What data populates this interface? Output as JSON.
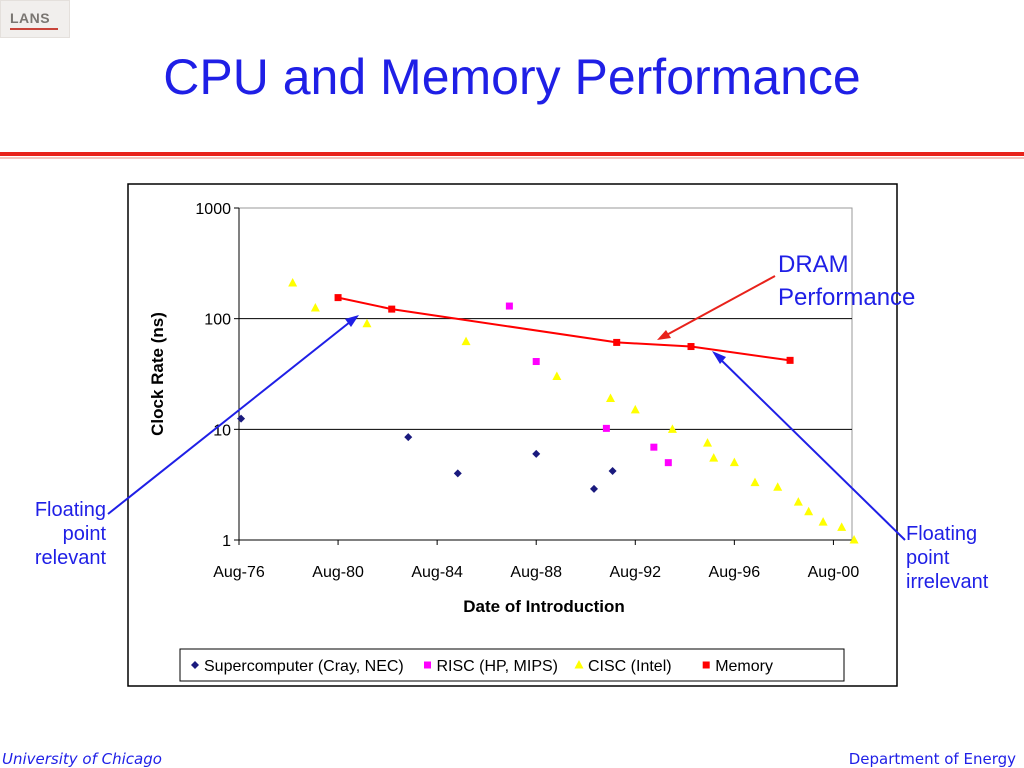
{
  "logo": {
    "text": "LANS"
  },
  "slide": {
    "title": "CPU and Memory Performance"
  },
  "annotations": {
    "left": [
      "Floating",
      "point",
      "relevant"
    ],
    "right": [
      "Floating",
      "point",
      "irrelevant"
    ],
    "dram": [
      "DRAM",
      "Performance"
    ]
  },
  "footer": {
    "left": "University of Chicago",
    "right": "Department of Energy"
  },
  "chart_data": {
    "type": "scatter",
    "title": "",
    "xlabel": "Date of Introduction",
    "ylabel": "Clock Rate (ns)",
    "y_scale": "log",
    "ylim": [
      1,
      1000
    ],
    "xlim": [
      "1976-08",
      "2001-05"
    ],
    "x_ticks": [
      "Aug-76",
      "Aug-80",
      "Aug-84",
      "Aug-88",
      "Aug-92",
      "Aug-96",
      "Aug-00"
    ],
    "y_ticks": [
      "1",
      "10",
      "100",
      "1000"
    ],
    "grid": "horizontal major",
    "legend_position": "bottom",
    "series": [
      {
        "name": "Supercomputer (Cray, NEC)",
        "marker": "diamond",
        "color": "#1a1a7e",
        "points": [
          [
            "1976-09",
            12.5
          ],
          [
            "1983-06",
            8.5
          ],
          [
            "1985-06",
            4
          ],
          [
            "1988-08",
            6
          ],
          [
            "1991-00",
            2.9
          ],
          [
            "1991-09",
            4.2
          ]
        ]
      },
      {
        "name": "RISC (HP, MIPS)",
        "marker": "square",
        "color": "#ff00ff",
        "points": [
          [
            "1987-07",
            130
          ],
          [
            "1988-08",
            41
          ],
          [
            "1991-06",
            10.2
          ],
          [
            "1993-05",
            6.9
          ],
          [
            "1994-00",
            5
          ]
        ]
      },
      {
        "name": "CISC (Intel)",
        "marker": "triangle",
        "color": "#ffff00",
        "points": [
          [
            "1978-10",
            210
          ],
          [
            "1979-09",
            125
          ],
          [
            "1981-10",
            90
          ],
          [
            "1985-10",
            62
          ],
          [
            "1989-06",
            30
          ],
          [
            "1991-08",
            19
          ],
          [
            "1992-08",
            15
          ],
          [
            "1994-02",
            10
          ],
          [
            "1995-07",
            7.5
          ],
          [
            "1995-10",
            5.5
          ],
          [
            "1996-08",
            5
          ],
          [
            "1997-06",
            3.3
          ],
          [
            "1998-05",
            3
          ],
          [
            "1999-03",
            2.2
          ],
          [
            "1999-08",
            1.8
          ],
          [
            "2000-03",
            1.45
          ],
          [
            "2001-00",
            1.3
          ],
          [
            "2001-06",
            1
          ]
        ]
      },
      {
        "name": "Memory",
        "marker": "square",
        "color": "#ff0000",
        "line": true,
        "points": [
          [
            "1980-08",
            155
          ],
          [
            "1982-10",
            122
          ],
          [
            "1991-11",
            61
          ],
          [
            "1994-11",
            56
          ],
          [
            "1998-11",
            42
          ]
        ]
      }
    ]
  },
  "colors": {
    "title": "#1f1fe6",
    "rule": "#e8221b",
    "arrow_blue": "#1f1fe6",
    "arrow_red": "#e8221b"
  }
}
